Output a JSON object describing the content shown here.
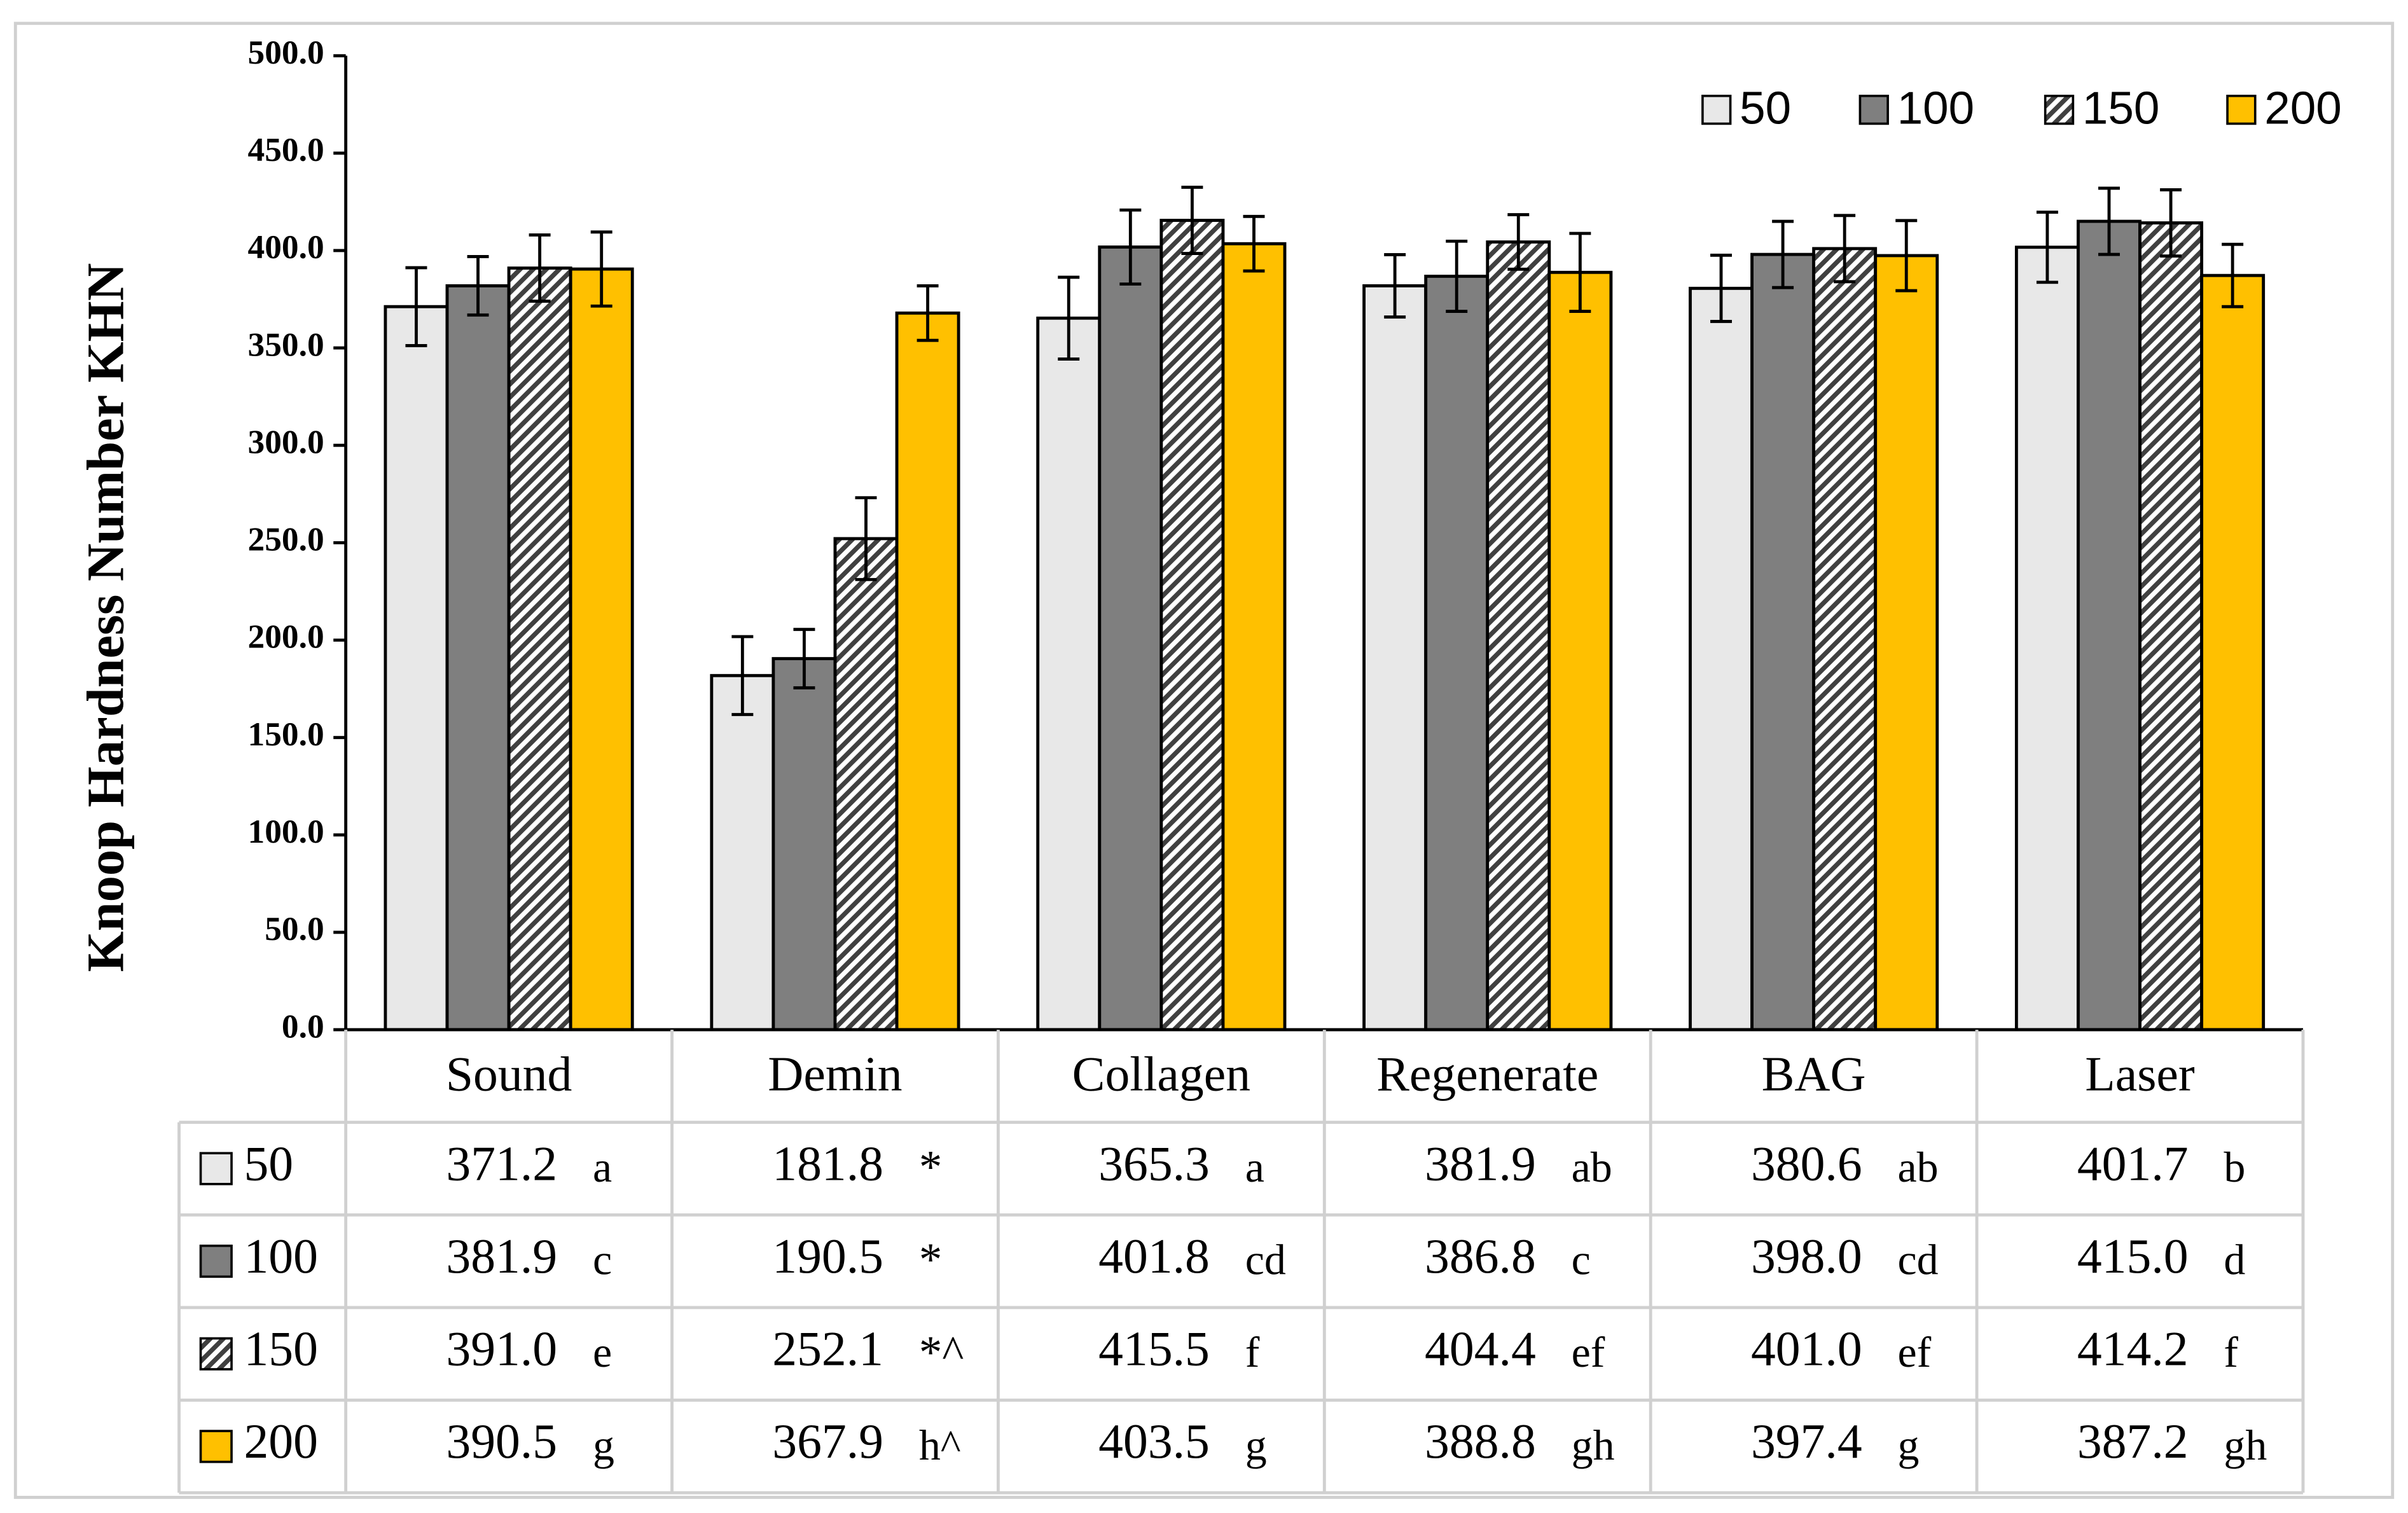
{
  "chart_data": {
    "type": "bar",
    "ylabel": "Knoop Hardness Number KHN",
    "categories": [
      "Sound",
      "Demin",
      "Collagen",
      "Regenerate",
      "BAG",
      "Laser"
    ],
    "ylim": [
      0,
      500
    ],
    "yticks": [
      {
        "value": 0,
        "label": "0.0"
      },
      {
        "value": 50,
        "label": "50.0"
      },
      {
        "value": 100,
        "label": "100.0"
      },
      {
        "value": 150,
        "label": "150.0"
      },
      {
        "value": 200,
        "label": "200.0"
      },
      {
        "value": 250,
        "label": "250.0"
      },
      {
        "value": 300,
        "label": "300.0"
      },
      {
        "value": 350,
        "label": "350.0"
      },
      {
        "value": 400,
        "label": "400.0"
      },
      {
        "value": 450,
        "label": "450.0"
      },
      {
        "value": 500,
        "label": "500.0"
      }
    ],
    "legend": "top-right",
    "series": [
      {
        "name": "50",
        "color": "#e8e8e8",
        "hatch": false,
        "values": [
          371.2,
          181.8,
          365.3,
          381.9,
          380.6,
          401.7
        ],
        "value_labels": [
          "371.2",
          "181.8",
          "365.3",
          "381.9",
          "380.6",
          "401.7"
        ],
        "errors": [
          20,
          20,
          21,
          16,
          17,
          18
        ],
        "letters": [
          "a",
          "*",
          "a",
          "ab",
          "ab",
          "b"
        ]
      },
      {
        "name": "100",
        "color": "#7f7f7f",
        "hatch": false,
        "values": [
          381.9,
          190.5,
          401.8,
          386.8,
          398.0,
          415.0
        ],
        "value_labels": [
          "381.9",
          "190.5",
          "401.8",
          "386.8",
          "398.0",
          "415.0"
        ],
        "errors": [
          15,
          15,
          19,
          18,
          17,
          17
        ],
        "letters": [
          "c",
          "*",
          "cd",
          "c",
          "cd",
          "d"
        ]
      },
      {
        "name": "150",
        "color": "#ffffff",
        "hatch": true,
        "values": [
          391.0,
          252.1,
          415.5,
          404.4,
          401.0,
          414.2
        ],
        "value_labels": [
          "391.0",
          "252.1",
          "415.5",
          "404.4",
          "401.0",
          "414.2"
        ],
        "errors": [
          17,
          21,
          17,
          14,
          17,
          17
        ],
        "letters": [
          "e",
          "*^",
          "f",
          "ef",
          "ef",
          "f"
        ]
      },
      {
        "name": "200",
        "color": "#ffc000",
        "hatch": false,
        "values": [
          390.5,
          367.9,
          403.5,
          388.8,
          397.4,
          387.2
        ],
        "value_labels": [
          "390.5",
          "367.9",
          "403.5",
          "388.8",
          "397.4",
          "387.2"
        ],
        "errors": [
          19,
          14,
          14,
          20,
          18,
          16
        ],
        "letters": [
          "g",
          "h^",
          "g",
          "gh",
          "g",
          "gh"
        ]
      }
    ]
  }
}
